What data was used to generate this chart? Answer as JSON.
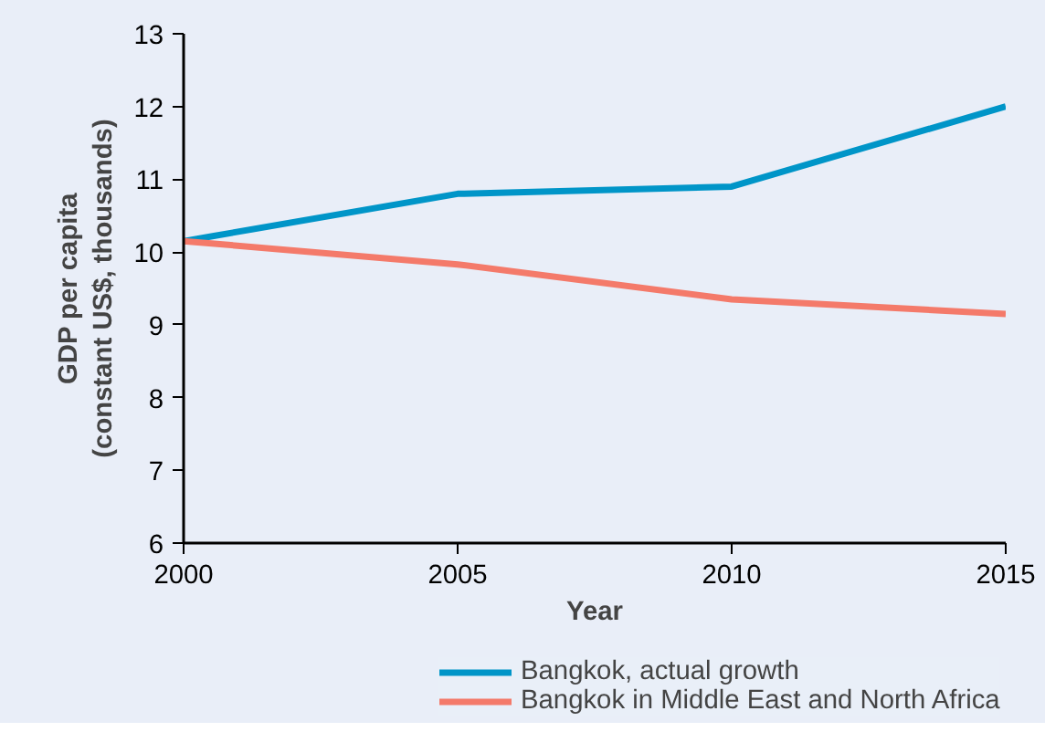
{
  "chart_data": {
    "type": "line",
    "xlabel": "Year",
    "ylabel": "GDP per capita\n(constant US$, thousands)",
    "x": [
      2000,
      2005,
      2010,
      2015
    ],
    "series": [
      {
        "name": "Bangkok, actual growth",
        "color": "#0095c8",
        "values": [
          10.15,
          10.8,
          10.9,
          12.0
        ]
      },
      {
        "name": "Bangkok in Middle East and North Africa",
        "color": "#f47a6a",
        "values": [
          10.15,
          9.83,
          9.35,
          9.15
        ]
      }
    ],
    "xlim": [
      2000,
      2015
    ],
    "xticks": [
      2000,
      2005,
      2010,
      2015
    ],
    "ylim": [
      6,
      13
    ],
    "yticks": [
      6,
      7,
      8,
      9,
      10,
      11,
      12,
      13
    ],
    "grid": false,
    "legend": "bottom",
    "marker": "none",
    "line_style": "solid"
  }
}
